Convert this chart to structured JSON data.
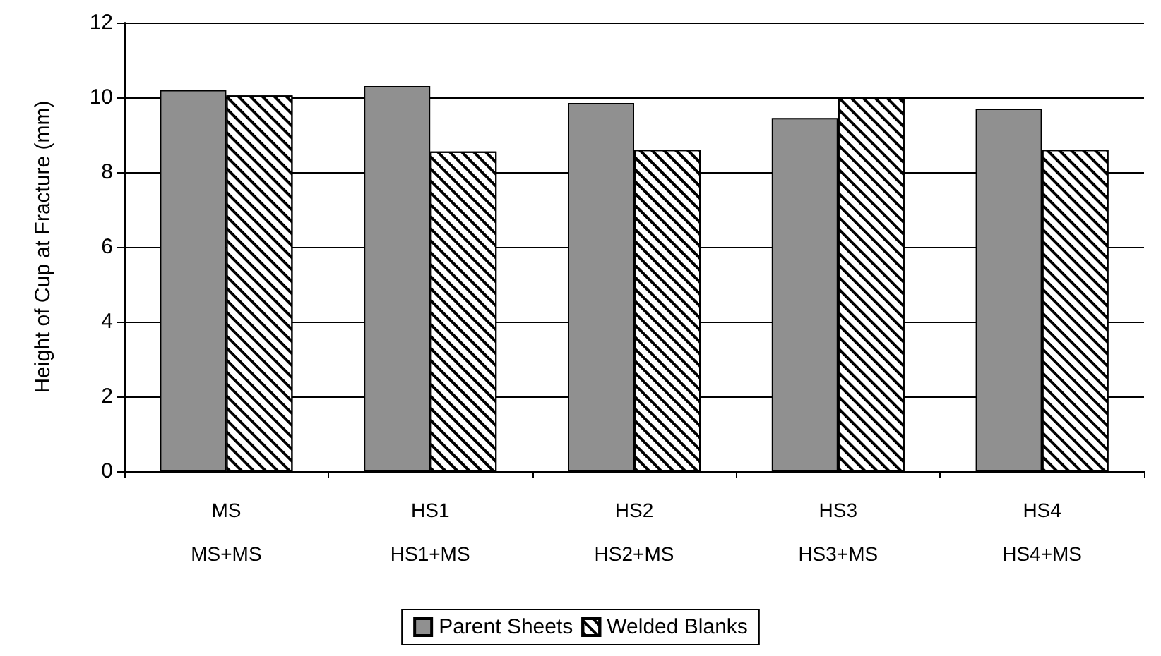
{
  "chart_data": {
    "type": "bar",
    "ylabel": "Height of Cup at Fracture (mm)",
    "categories": [
      "MS\nMS+MS",
      "HS1\nHS1+MS",
      "HS2\nHS2+MS",
      "HS3\nHS3+MS",
      "HS4\nHS4+MS"
    ],
    "series": [
      {
        "name": "Parent Sheets",
        "color": "#909090",
        "values": [
          10.2,
          10.3,
          9.85,
          9.45,
          9.7
        ]
      },
      {
        "name": "Welded Blanks",
        "color": "#ffffff",
        "values": [
          10.05,
          8.55,
          8.6,
          10.0,
          8.6
        ]
      }
    ],
    "ylim": [
      0,
      12
    ],
    "yticks": [
      0,
      2,
      4,
      6,
      8,
      10,
      12
    ],
    "grid": "y",
    "legend": "bottom"
  }
}
